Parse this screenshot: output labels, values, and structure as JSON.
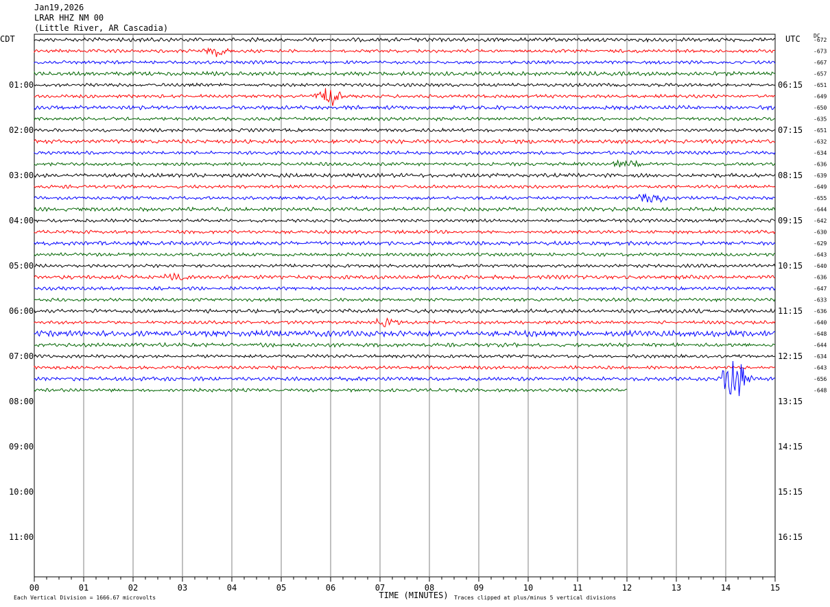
{
  "header": {
    "date": "Jan19,2026",
    "station": "LRAR HHZ NM 00",
    "location": "(Little River, AR Cascadia)"
  },
  "left_axis_label": "CDT",
  "right_axis_label": "UTC",
  "dc_label": "DC",
  "footer": {
    "x_axis_title": "TIME (MINUTES)",
    "scale_note": "Each Vertical Division = 1666.67 microvolts",
    "clip_note": "Traces clipped at plus/minus 5 vertical divisions"
  },
  "chart_data": {
    "type": "line",
    "xlim": [
      0,
      15
    ],
    "x_ticks": [
      "00",
      "01",
      "02",
      "03",
      "04",
      "05",
      "06",
      "07",
      "08",
      "09",
      "10",
      "11",
      "12",
      "13",
      "14",
      "15"
    ],
    "rows_per_hour": 4,
    "hour_labels_cdt": [
      "01:00",
      "02:00",
      "03:00",
      "04:00",
      "05:00",
      "06:00",
      "07:00",
      "08:00",
      "09:00",
      "10:00",
      "11:00"
    ],
    "hour_labels_utc": [
      "06:15",
      "07:15",
      "08:15",
      "09:15",
      "10:15",
      "11:15",
      "12:15",
      "13:15",
      "14:15",
      "15:15",
      "16:15"
    ],
    "trace_colors": [
      "#000000",
      "#ff0000",
      "#0000ff",
      "#006400"
    ],
    "dc_offsets": [
      "-672",
      "-673",
      "-667",
      "-657",
      "-651",
      "-649",
      "-650",
      "-635",
      "-651",
      "-632",
      "-634",
      "-636",
      "-639",
      "-649",
      "-655",
      "-644",
      "-642",
      "-630",
      "-629",
      "-643",
      "-640",
      "-636",
      "-647",
      "-633",
      "-636",
      "-640",
      "-648",
      "-644",
      "-634",
      "-643",
      "-656",
      "-648"
    ],
    "trace_count": 32,
    "last_trace_end_minute": 12,
    "events": [
      {
        "trace": 1,
        "minute": 3.7,
        "amplitude": 2.0
      },
      {
        "trace": 5,
        "minute": 5.95,
        "amplitude": 4.5
      },
      {
        "trace": 14,
        "minute": 12.5,
        "amplitude": 3.0
      },
      {
        "trace": 11,
        "minute": 12.0,
        "amplitude": 1.8
      },
      {
        "trace": 21,
        "minute": 2.9,
        "amplitude": 1.6
      },
      {
        "trace": 25,
        "minute": 7.1,
        "amplitude": 1.5
      },
      {
        "trace": 30,
        "minute": 14.2,
        "amplitude": 12.0
      }
    ]
  }
}
